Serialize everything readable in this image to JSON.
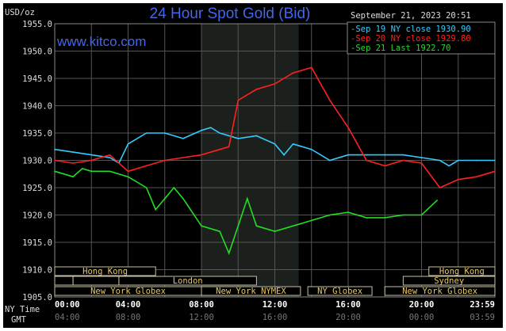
{
  "chart_data": {
    "type": "line",
    "title": "24 Hour Spot Gold (Bid)",
    "watermark": "www.kitco.com",
    "ylabel": "USD/oz",
    "timestamp": "September 21, 2023 20:51",
    "ylim": [
      1905,
      1955
    ],
    "yticks": [
      "1955.0",
      "1950.0",
      "1945.0",
      "1940.0",
      "1935.0",
      "1930.0",
      "1925.0",
      "1920.0",
      "1915.0",
      "1910.0",
      "1905.0"
    ],
    "x_row_labels": {
      "ny": "NY Time",
      "gmt": "GMT"
    },
    "xticks_ny": [
      "00:00",
      "04:00",
      "08:00",
      "12:00",
      "16:00",
      "20:00",
      "23:59"
    ],
    "xticks_gmt": [
      "04:00",
      "08:00",
      "12:00",
      "16:00",
      "20:00",
      "00:00",
      "03:59"
    ],
    "xlim_hours": [
      0,
      24
    ],
    "shaded_region_hours": [
      8,
      13.3
    ],
    "sessions": [
      {
        "label": "Hong Kong",
        "row": 0,
        "start": 0,
        "end": 5.5
      },
      {
        "label": "Hong Kong",
        "row": 0,
        "start": 20.4,
        "end": 24
      },
      {
        "label": "",
        "row": 1,
        "start": 0,
        "end": 1
      },
      {
        "label": "",
        "row": 1,
        "start": 1,
        "end": 3.5
      },
      {
        "label": "London",
        "row": 1,
        "start": 3.5,
        "end": 11
      },
      {
        "label": "Sydney",
        "row": 1,
        "start": 19,
        "end": 24
      },
      {
        "label": "New York Globex",
        "row": 2,
        "start": 0,
        "end": 8
      },
      {
        "label": "New York NYMEX",
        "row": 2,
        "start": 8,
        "end": 13.4
      },
      {
        "label": "NY Globex",
        "row": 2,
        "start": 13.8,
        "end": 17.3
      },
      {
        "label": "New York Globex",
        "row": 2,
        "start": 18,
        "end": 24
      }
    ],
    "series": [
      {
        "name": "Sep 19 NY close 1930.90",
        "color": "#33ccff",
        "x": [
          0,
          1,
          2,
          3,
          3.5,
          4,
          5,
          6,
          7,
          8,
          8.5,
          9,
          10,
          11,
          12,
          12.5,
          13,
          14,
          15,
          16,
          17,
          18,
          19,
          20,
          21,
          21.5,
          22,
          23,
          24
        ],
        "y": [
          1932,
          1931.5,
          1931,
          1930.5,
          1929.5,
          1933,
          1935,
          1935,
          1934,
          1935.5,
          1936,
          1935,
          1934,
          1934.5,
          1933,
          1931,
          1933,
          1932,
          1930,
          1931,
          1931,
          1931,
          1931,
          1930.5,
          1930,
          1929,
          1930,
          1930,
          1930
        ]
      },
      {
        "name": "Sep 20 NY close 1929.80",
        "color": "#ff2020",
        "x": [
          0,
          1,
          2,
          3,
          4,
          5,
          6,
          7,
          8,
          9,
          9.5,
          10,
          11,
          12,
          13,
          14,
          14.5,
          15,
          16,
          17,
          18,
          19,
          20,
          21,
          22,
          23,
          24
        ],
        "y": [
          1930,
          1929.5,
          1930,
          1931,
          1928,
          1929,
          1930,
          1930.5,
          1931,
          1932,
          1932.5,
          1941,
          1943,
          1944,
          1946,
          1947,
          1944,
          1941,
          1936,
          1930,
          1929,
          1930,
          1929.5,
          1925,
          1926.5,
          1927,
          1928
        ]
      },
      {
        "name": "Sep 21 Last 1922.70",
        "color": "#22dd22",
        "x": [
          0,
          1,
          1.5,
          2,
          3,
          4,
          5,
          5.5,
          6,
          6.5,
          7,
          8,
          9,
          9.5,
          10,
          10.5,
          11,
          12,
          13,
          14,
          15,
          16,
          17,
          18,
          19,
          20,
          20.85
        ],
        "y": [
          1928,
          1927,
          1928.5,
          1928,
          1928,
          1927,
          1925,
          1921,
          1923,
          1925,
          1923,
          1918,
          1917,
          1913,
          1918,
          1923,
          1918,
          1917,
          1918,
          1919,
          1920,
          1920.5,
          1919.5,
          1919.5,
          1920,
          1920,
          1922.7
        ]
      }
    ]
  }
}
